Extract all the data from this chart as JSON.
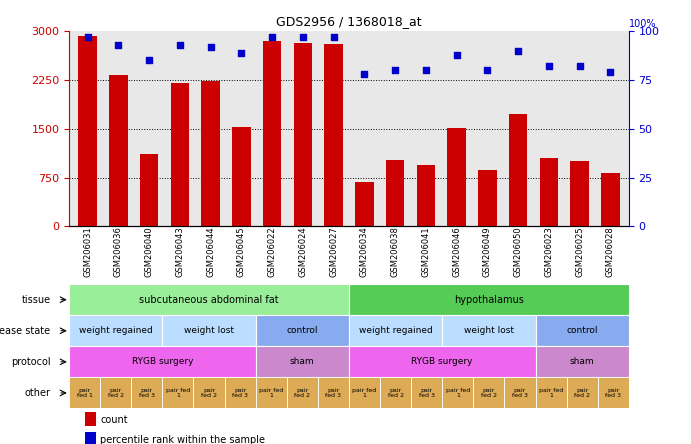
{
  "title": "GDS2956 / 1368018_at",
  "samples": [
    "GSM206031",
    "GSM206036",
    "GSM206040",
    "GSM206043",
    "GSM206044",
    "GSM206045",
    "GSM206022",
    "GSM206024",
    "GSM206027",
    "GSM206034",
    "GSM206038",
    "GSM206041",
    "GSM206046",
    "GSM206049",
    "GSM206050",
    "GSM206023",
    "GSM206025",
    "GSM206028"
  ],
  "counts": [
    2920,
    2320,
    1120,
    2200,
    2230,
    1520,
    2840,
    2820,
    2800,
    680,
    1020,
    950,
    1510,
    870,
    1720,
    1050,
    1000,
    820
  ],
  "percentile": [
    97,
    93,
    85,
    93,
    92,
    89,
    97,
    97,
    97,
    78,
    80,
    80,
    88,
    80,
    90,
    82,
    82,
    79
  ],
  "ylim_left": [
    0,
    3000
  ],
  "ylim_right": [
    0,
    100
  ],
  "yticks_left": [
    0,
    750,
    1500,
    2250,
    3000
  ],
  "yticks_right": [
    0,
    25,
    50,
    75,
    100
  ],
  "bar_color": "#cc0000",
  "dot_color": "#0000cc",
  "tissue_labels": [
    {
      "text": "subcutaneous abdominal fat",
      "start": 0,
      "end": 9,
      "color": "#99ee99"
    },
    {
      "text": "hypothalamus",
      "start": 9,
      "end": 18,
      "color": "#55cc55"
    }
  ],
  "disease_labels": [
    {
      "text": "weight regained",
      "start": 0,
      "end": 3,
      "color": "#bbddff"
    },
    {
      "text": "weight lost",
      "start": 3,
      "end": 6,
      "color": "#bbddff"
    },
    {
      "text": "control",
      "start": 6,
      "end": 9,
      "color": "#88aaee"
    },
    {
      "text": "weight regained",
      "start": 9,
      "end": 12,
      "color": "#bbddff"
    },
    {
      "text": "weight lost",
      "start": 12,
      "end": 15,
      "color": "#bbddff"
    },
    {
      "text": "control",
      "start": 15,
      "end": 18,
      "color": "#88aaee"
    }
  ],
  "protocol_labels": [
    {
      "text": "RYGB surgery",
      "start": 0,
      "end": 6,
      "color": "#ee66ee"
    },
    {
      "text": "sham",
      "start": 6,
      "end": 9,
      "color": "#cc88cc"
    },
    {
      "text": "RYGB surgery",
      "start": 9,
      "end": 15,
      "color": "#ee66ee"
    },
    {
      "text": "sham",
      "start": 15,
      "end": 18,
      "color": "#cc88cc"
    }
  ],
  "other_labels": [
    {
      "text": "pair\nfed 1",
      "start": 0,
      "end": 1
    },
    {
      "text": "pair\nfed 2",
      "start": 1,
      "end": 2
    },
    {
      "text": "pair\nfed 3",
      "start": 2,
      "end": 3
    },
    {
      "text": "pair fed\n1",
      "start": 3,
      "end": 4
    },
    {
      "text": "pair\nfed 2",
      "start": 4,
      "end": 5
    },
    {
      "text": "pair\nfed 3",
      "start": 5,
      "end": 6
    },
    {
      "text": "pair fed\n1",
      "start": 6,
      "end": 7
    },
    {
      "text": "pair\nfed 2",
      "start": 7,
      "end": 8
    },
    {
      "text": "pair\nfed 3",
      "start": 8,
      "end": 9
    },
    {
      "text": "pair fed\n1",
      "start": 9,
      "end": 10
    },
    {
      "text": "pair\nfed 2",
      "start": 10,
      "end": 11
    },
    {
      "text": "pair\nfed 3",
      "start": 11,
      "end": 12
    },
    {
      "text": "pair fed\n1",
      "start": 12,
      "end": 13
    },
    {
      "text": "pair\nfed 2",
      "start": 13,
      "end": 14
    },
    {
      "text": "pair\nfed 3",
      "start": 14,
      "end": 15
    },
    {
      "text": "pair fed\n1",
      "start": 15,
      "end": 16
    },
    {
      "text": "pair\nfed 2",
      "start": 16,
      "end": 17
    },
    {
      "text": "pair\nfed 3",
      "start": 17,
      "end": 18
    }
  ],
  "other_color": "#ddaa55",
  "row_labels": [
    "tissue",
    "disease state",
    "protocol",
    "other"
  ],
  "legend_count_color": "#cc0000",
  "legend_pct_color": "#0000cc",
  "bg_color": "#e8e8e8"
}
